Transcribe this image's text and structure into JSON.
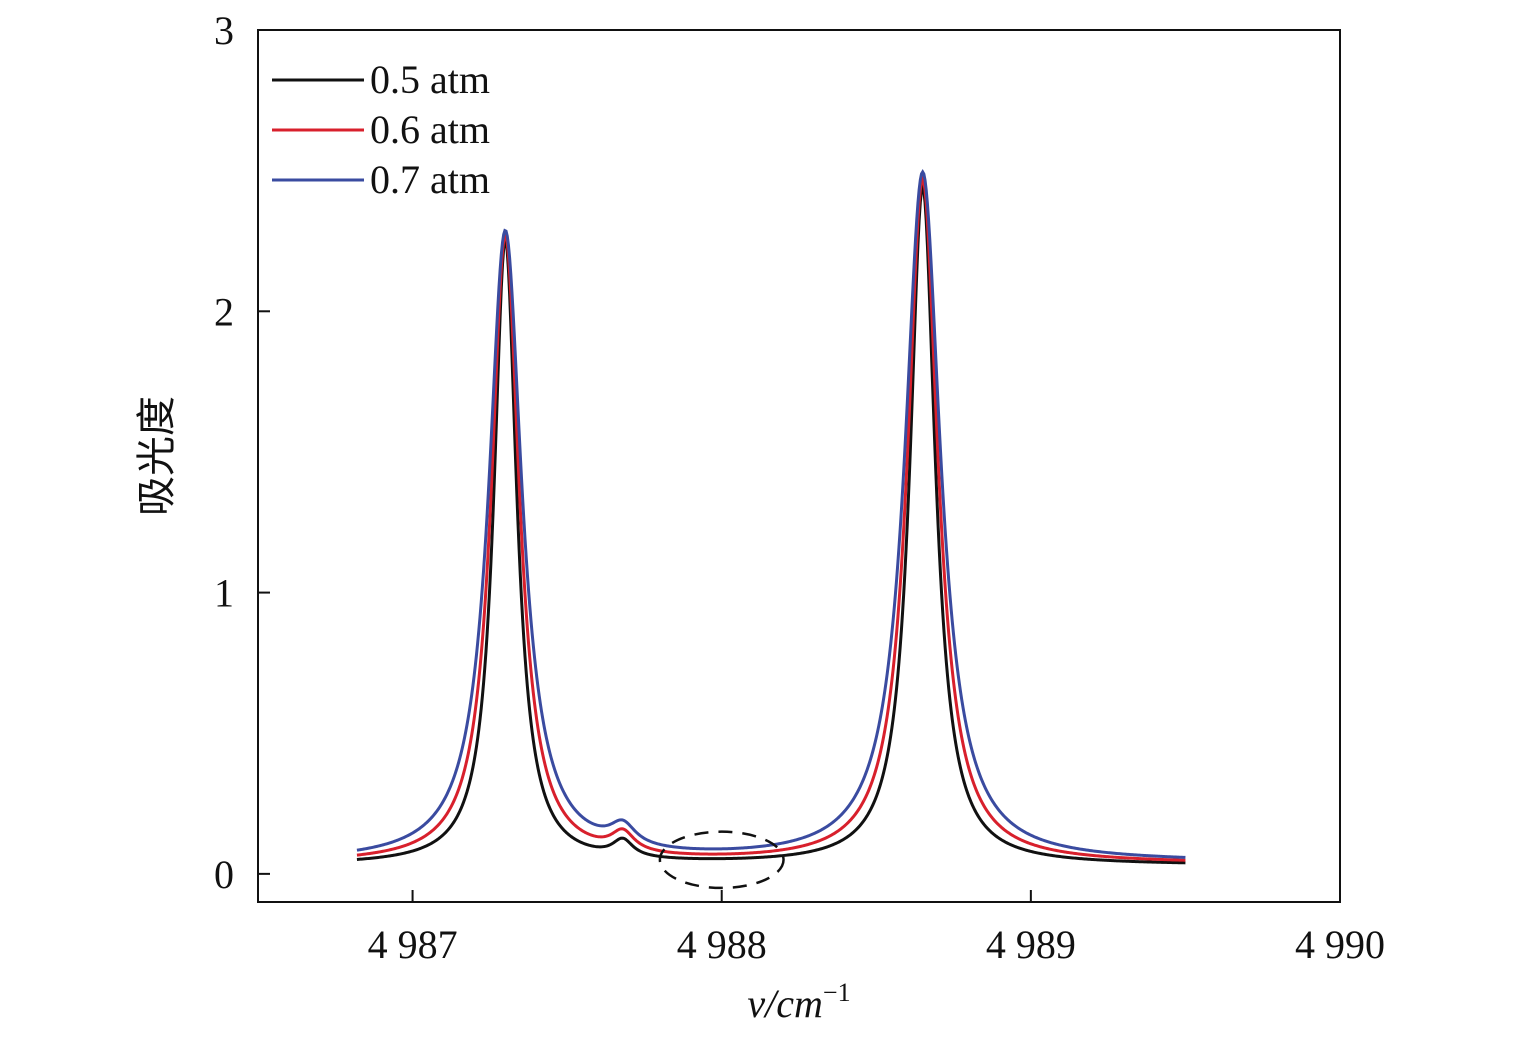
{
  "chart_data": {
    "type": "line",
    "title": "",
    "xlabel": "v/cm",
    "xlabel_superscript": "−1",
    "ylabel": "吸光度",
    "xlim": [
      4986.5,
      4990
    ],
    "ylim": [
      -0.1,
      3
    ],
    "x_ticks": [
      4987,
      4988,
      4989,
      4990
    ],
    "x_tick_labels": [
      "4 987",
      "4 988",
      "4 989",
      "4 990"
    ],
    "y_ticks": [
      0,
      1,
      2,
      3
    ],
    "y_tick_labels": [
      "0",
      "1",
      "2",
      "3"
    ],
    "grid": false,
    "legend_position": "top-left",
    "x_range": [
      4986.82,
      4989.5
    ],
    "series": [
      {
        "name": "0.5 atm",
        "color": "#111111",
        "peaks": [
          {
            "center": 4987.3,
            "height": 2.22,
            "hwhm": 0.045
          },
          {
            "center": 4987.68,
            "height": 0.06,
            "hwhm": 0.04
          },
          {
            "center": 4988.65,
            "height": 2.41,
            "hwhm": 0.05
          }
        ],
        "baseline": 0.03
      },
      {
        "name": "0.6 atm",
        "color": "#d8202c",
        "peaks": [
          {
            "center": 4987.3,
            "height": 2.23,
            "hwhm": 0.055
          },
          {
            "center": 4987.68,
            "height": 0.07,
            "hwhm": 0.045
          },
          {
            "center": 4988.65,
            "height": 2.43,
            "hwhm": 0.06
          }
        ],
        "baseline": 0.035
      },
      {
        "name": "0.7 atm",
        "color": "#3a4ba0",
        "peaks": [
          {
            "center": 4987.3,
            "height": 2.24,
            "hwhm": 0.065
          },
          {
            "center": 4987.68,
            "height": 0.075,
            "hwhm": 0.05
          },
          {
            "center": 4988.65,
            "height": 2.45,
            "hwhm": 0.07
          }
        ],
        "baseline": 0.04
      }
    ],
    "annotations": [
      {
        "type": "dashed-ellipse",
        "cx": 4988.0,
        "cy": 0.05,
        "rx": 0.2,
        "ry": 0.1
      }
    ]
  }
}
